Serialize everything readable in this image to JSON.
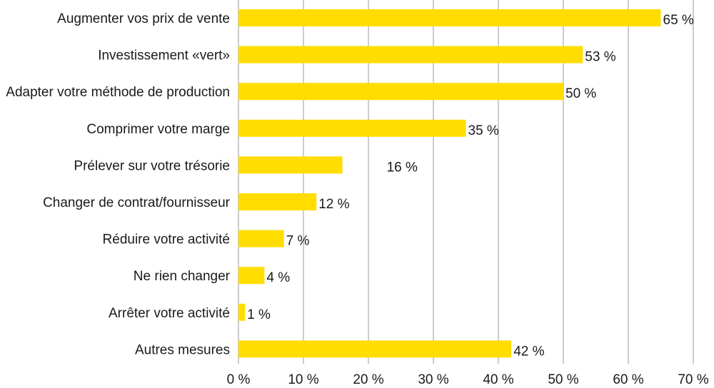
{
  "chart_data": {
    "type": "bar",
    "orientation": "horizontal",
    "title": "",
    "xlabel": "",
    "ylabel": "",
    "categories": [
      "Augmenter vos prix de vente",
      "Investissement «vert»",
      "Adapter votre méthode de production",
      "Comprimer votre marge",
      "Prélever sur votre trésorie",
      "Changer de contrat/fournisseur",
      "Réduire votre activité",
      "Ne rien changer",
      "Arrêter votre activité",
      "Autres mesures"
    ],
    "values": [
      65,
      53,
      50,
      35,
      16,
      12,
      7,
      4,
      1,
      42
    ],
    "value_labels": [
      "65 %",
      "53 %",
      "50 %",
      "35 %",
      "16 %",
      "12 %",
      "7 %",
      "4 %",
      "1 %",
      "42 %"
    ],
    "xlim": [
      0,
      70
    ],
    "xticks": [
      0,
      10,
      20,
      30,
      40,
      50,
      60,
      70
    ],
    "xtick_labels": [
      "0 %",
      "10 %",
      "20 %",
      "30 %",
      "40 %",
      "50 %",
      "60 %",
      "70 %"
    ],
    "grid": true,
    "bar_color": "#FFDD00"
  }
}
